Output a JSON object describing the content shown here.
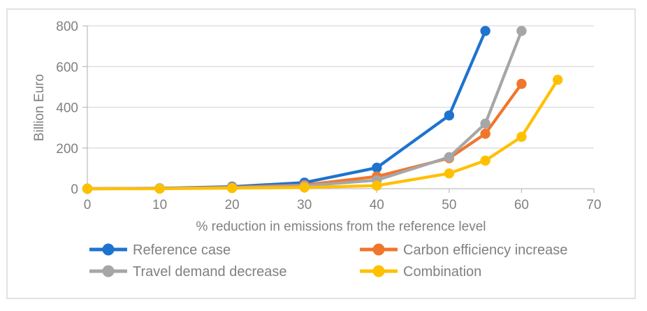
{
  "chart_data": {
    "type": "line",
    "title": "",
    "xlabel": "% reduction in emissions from the reference level",
    "ylabel": "Billion Euro",
    "xlim": [
      0,
      70
    ],
    "ylim": [
      0,
      800
    ],
    "x_ticks": [
      0,
      10,
      20,
      30,
      40,
      50,
      60,
      70
    ],
    "y_ticks": [
      0,
      200,
      400,
      600,
      800
    ],
    "grid": "horizontal",
    "grid_color": "#d9d9d9",
    "axis_color": "#bfbfbf",
    "legend_position": "bottom-two-columns",
    "series": [
      {
        "name": "Reference case",
        "color": "#1e73cf",
        "x": [
          0,
          10,
          20,
          30,
          40,
          50,
          55
        ],
        "y": [
          0,
          2,
          10,
          30,
          103,
          360,
          775
        ]
      },
      {
        "name": "Carbon efficiency increase",
        "color": "#f0762b",
        "x": [
          0,
          10,
          20,
          30,
          40,
          50,
          55,
          60
        ],
        "y": [
          0,
          1,
          7,
          18,
          60,
          150,
          270,
          515
        ]
      },
      {
        "name": "Travel demand decrease",
        "color": "#a6a6a6",
        "x": [
          0,
          10,
          20,
          30,
          40,
          50,
          55,
          60
        ],
        "y": [
          0,
          1,
          5,
          14,
          42,
          155,
          320,
          775
        ]
      },
      {
        "name": "Combination",
        "color": "#ffc000",
        "x": [
          0,
          10,
          20,
          30,
          40,
          50,
          55,
          60,
          65
        ],
        "y": [
          0,
          0,
          3,
          6,
          15,
          75,
          138,
          255,
          535
        ]
      }
    ]
  }
}
